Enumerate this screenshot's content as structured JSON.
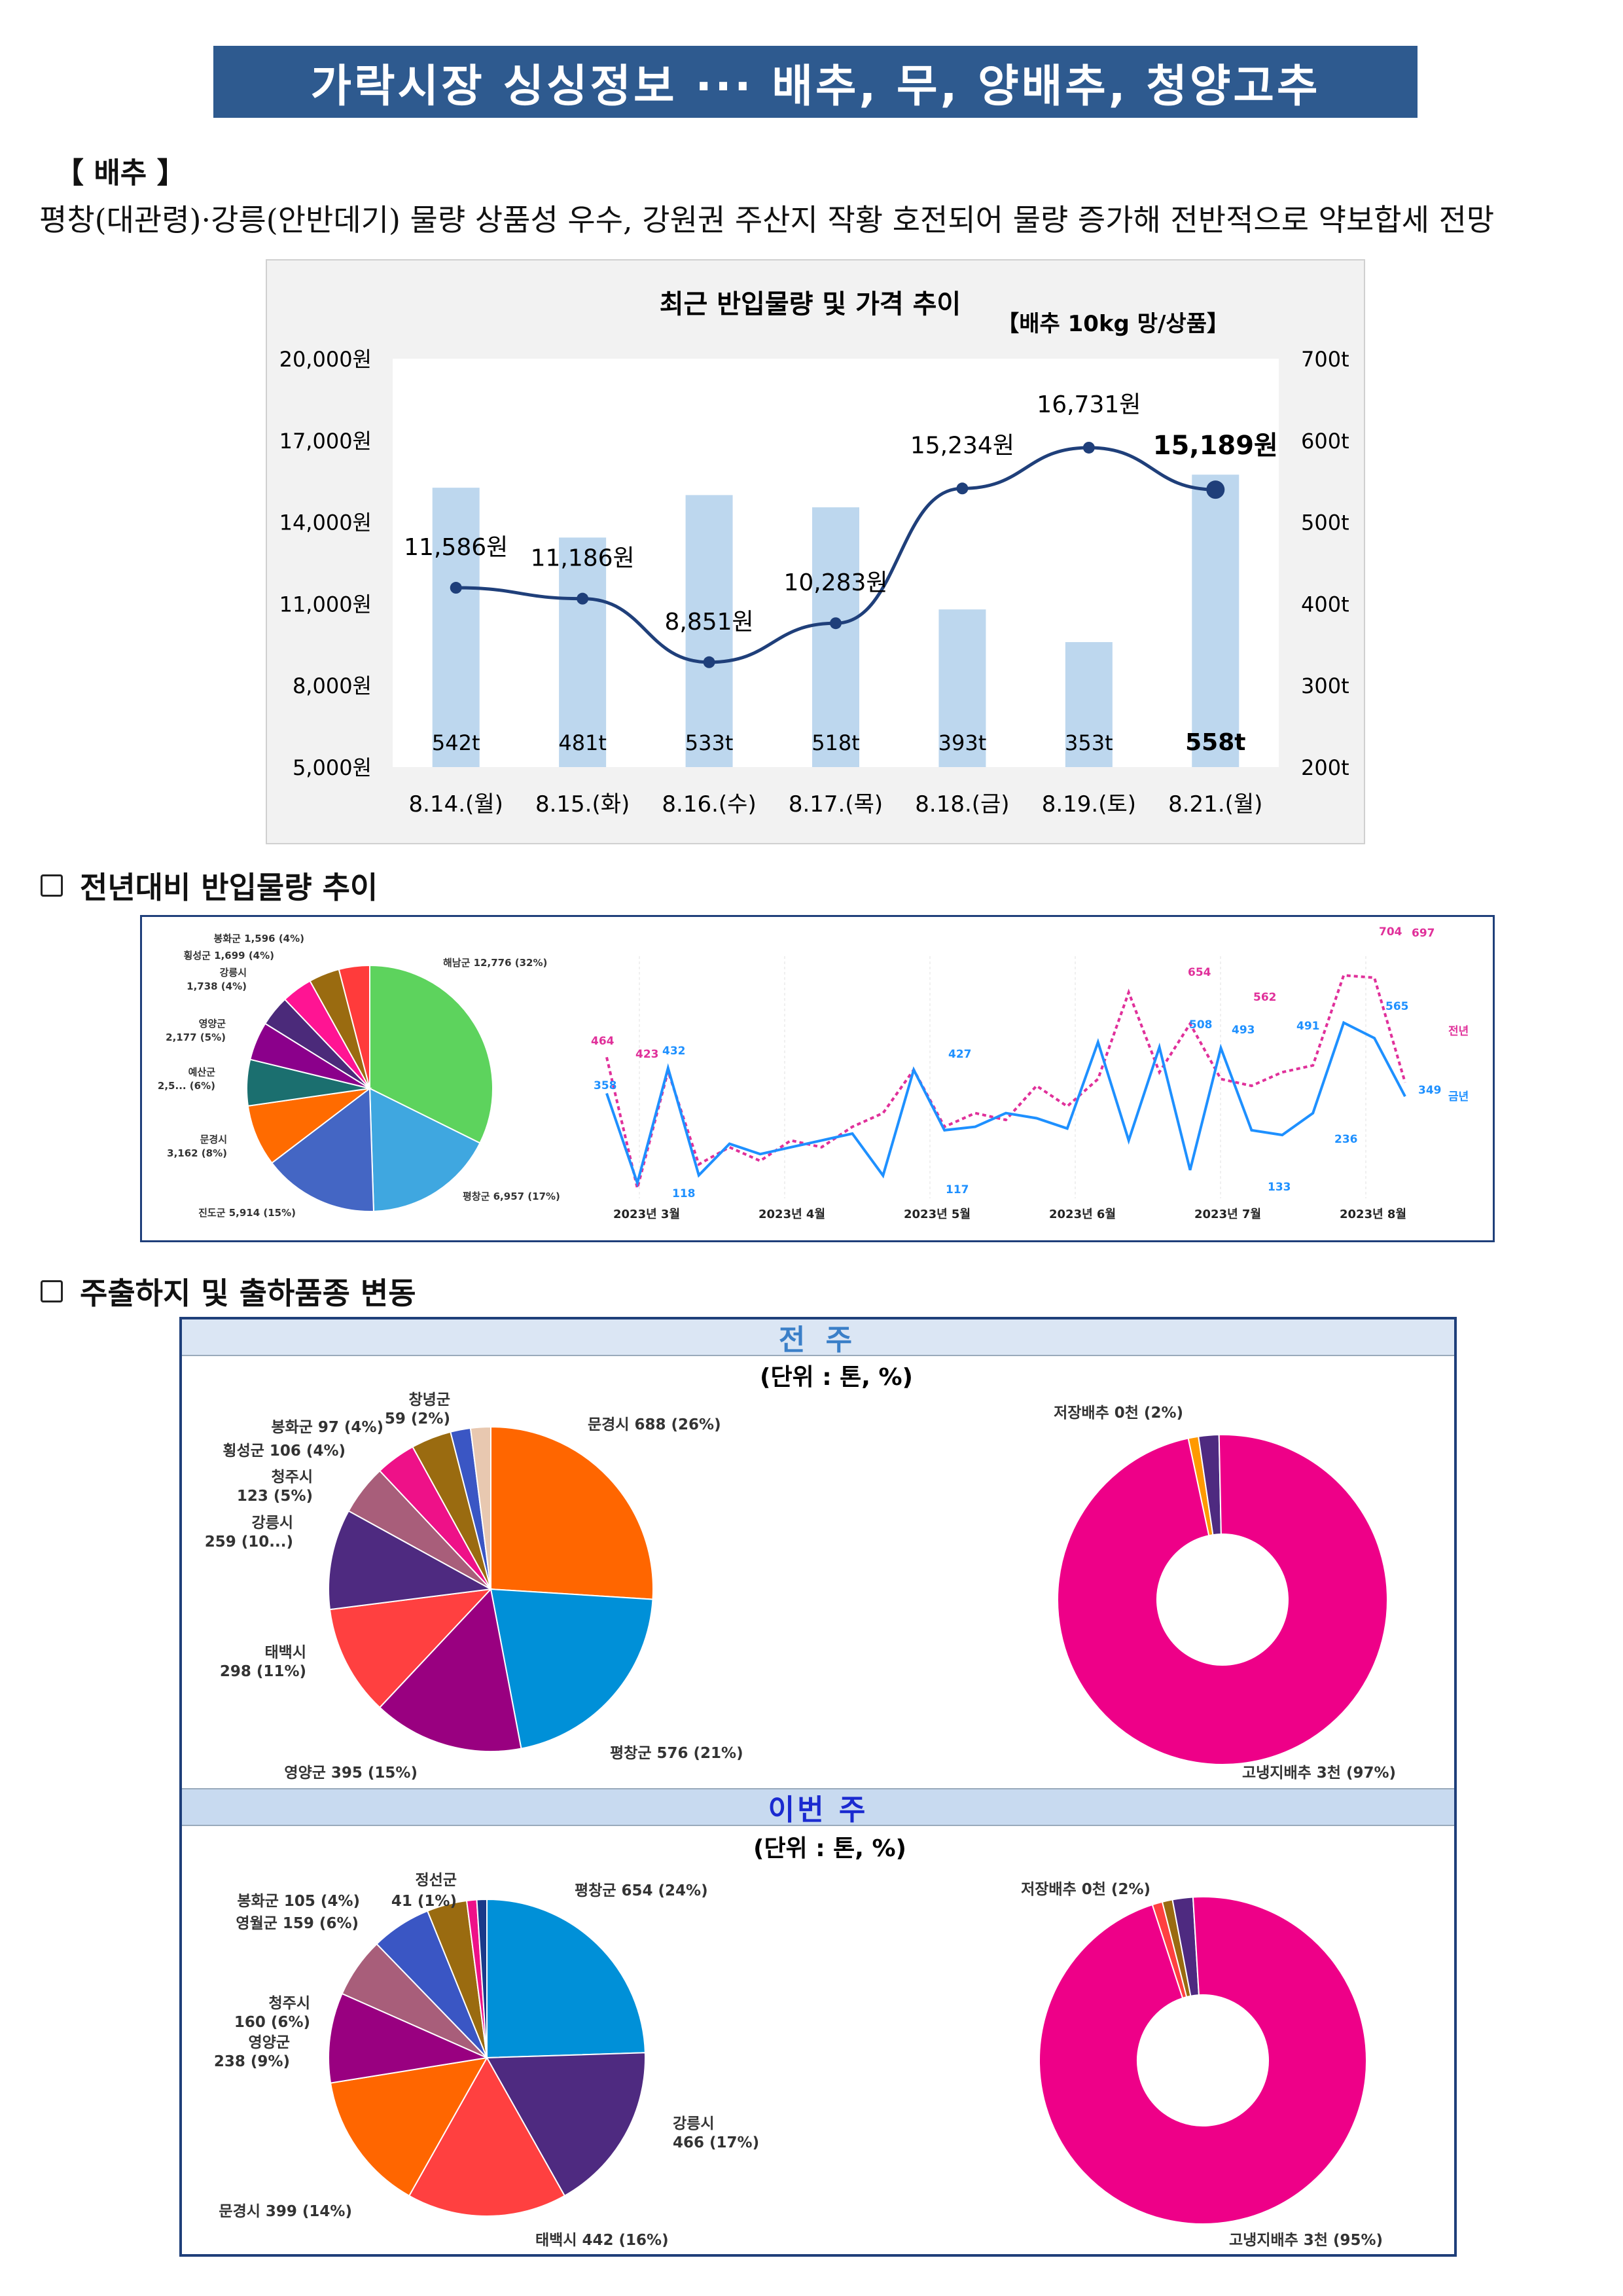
{
  "title": "가락시장 싱싱정보 ··· 배추, 무, 양배추, 청양고추",
  "section": "【 배추 】",
  "summary": "평창(대관령)·강릉(안반데기) 물량 상품성 우수, 강원권 주산지 작황 호전되어 물량 증가해 전반적으로 약보합세 전망",
  "chart_data": [
    {
      "type": "bar+line",
      "title": "최근 반입물량 및 가격 추이",
      "unit_note": "【배추 10kg 망/상품】",
      "categories": [
        "8.14.(월)",
        "8.15.(화)",
        "8.16.(수)",
        "8.17.(목)",
        "8.18.(금)",
        "8.19.(토)",
        "8.21.(월)"
      ],
      "series": [
        {
          "name": "반입물량",
          "axis": "right",
          "values": [
            542,
            481,
            533,
            518,
            393,
            353,
            558
          ],
          "labels": [
            "542t",
            "481t",
            "533t",
            "518t",
            "393t",
            "353t",
            "558t"
          ]
        },
        {
          "name": "가격",
          "axis": "left",
          "values": [
            11586,
            11186,
            8851,
            10283,
            15234,
            16731,
            15189
          ],
          "labels": [
            "11,586원",
            "11,186원",
            "8,851원",
            "10,283원",
            "15,234원",
            "16,731원",
            "15,189원"
          ]
        }
      ],
      "ylim_left": [
        5000,
        20000
      ],
      "ylim_right": [
        200,
        700
      ],
      "left_ticks": [
        "5,000원",
        "8,000원",
        "11,000원",
        "14,000원",
        "17,000원",
        "20,000원"
      ],
      "right_ticks": [
        "200t",
        "300t",
        "400t",
        "500t",
        "600t",
        "700t"
      ],
      "colors": {
        "bar": "#bdd7ee",
        "line": "#1f3f7a"
      }
    },
    {
      "type": "pie",
      "slices": [
        {
          "label": "해남군 12,776 (32%)",
          "value": 32,
          "color": "#5dd35d"
        },
        {
          "label": "평창군 6,957 (17%)",
          "value": 17,
          "color": "#3fa7e0"
        },
        {
          "label": "진도군 5,914 (15%)",
          "value": 15,
          "color": "#4466c4"
        },
        {
          "label": "문경시 3,162 (8%)",
          "value": 8,
          "color": "#ff6b00"
        },
        {
          "label": "예산군 2,5... (6%)",
          "value": 6,
          "color": "#1b6f6f"
        },
        {
          "label": "영양군 2,177 (5%)",
          "value": 5,
          "color": "#8b008b"
        },
        {
          "label": "강릉시 1,738 (4%)",
          "value": 4,
          "color": "#4b2a7a"
        },
        {
          "label": "횡성군 1,699 (4%)",
          "value": 4,
          "color": "#ff1493"
        },
        {
          "label": "봉화군 1,596 (4%)",
          "value": 4,
          "color": "#9a6b10"
        },
        {
          "label": "",
          "value": 4,
          "color": "#ff3b3b"
        }
      ]
    },
    {
      "type": "line",
      "series": [
        {
          "name": "전년",
          "color": "#e0309a",
          "values": [
            464,
            80,
            423,
            150,
            200,
            160,
            220,
            200,
            260,
            300,
            427,
            260,
            300,
            280,
            380,
            320,
            400,
            654,
            420,
            562,
            400,
            380,
            420,
            440,
            704,
            697,
            390
          ]
        },
        {
          "name": "금년",
          "color": "#1e90ff",
          "values": [
            358,
            95,
            432,
            118,
            210,
            180,
            200,
            220,
            240,
            117,
            427,
            250,
            260,
            300,
            285,
            255,
            508,
            220,
            493,
            133,
            491,
            250,
            236,
            300,
            565,
            520,
            349
          ]
        }
      ],
      "x_ticks": [
        "2023년 3월",
        "2023년 4월",
        "2023년 5월",
        "2023년 6월",
        "2023년 7월",
        "2023년 8월"
      ],
      "data_labels": [
        "464",
        "423",
        "432",
        "358",
        "118",
        "117",
        "427",
        "654",
        "508",
        "493",
        "562",
        "491",
        "133",
        "236",
        "565",
        "704",
        "697",
        "349",
        "전년",
        "금년"
      ]
    },
    {
      "type": "pie",
      "group": "전 주",
      "unit": "(단위 : 톤, %)",
      "slices": [
        {
          "label": "문경시 688 (26%)",
          "value": 26,
          "color": "#ff6600"
        },
        {
          "label": "평창군 576 (21%)",
          "value": 21,
          "color": "#0090d8"
        },
        {
          "label": "영양군 395 (15%)",
          "value": 15,
          "color": "#990080"
        },
        {
          "label": "태백시 298 (11%)",
          "value": 11,
          "color": "#ff4040"
        },
        {
          "label": "강릉시 259 (10...)",
          "value": 10,
          "color": "#4e2a80"
        },
        {
          "label": "청주시 123 (5%)",
          "value": 5,
          "color": "#a85e7a"
        },
        {
          "label": "횡성군 106 (4%)",
          "value": 4,
          "color": "#ee1188"
        },
        {
          "label": "봉화군 97 (4%)",
          "value": 4,
          "color": "#9a6b10"
        },
        {
          "label": "창녕군 59 (2%)",
          "value": 2,
          "color": "#3a56c4"
        },
        {
          "label": "",
          "value": 2,
          "color": "#e8c8b0"
        }
      ]
    },
    {
      "type": "donut",
      "group": "전 주",
      "slices": [
        {
          "label": "고냉지배추 3천 (97%)",
          "value": 97,
          "color": "#ee0088"
        },
        {
          "label": "저장배추 0천 (2%)",
          "value": 2,
          "color": "#4e2a80"
        },
        {
          "label": "",
          "value": 1,
          "color": "#ff9900"
        }
      ]
    },
    {
      "type": "pie",
      "group": "이번 주",
      "unit": "(단위 : 톤, %)",
      "slices": [
        {
          "label": "평창군 654 (24%)",
          "value": 24,
          "color": "#0090d8"
        },
        {
          "label": "강릉시 466 (17%)",
          "value": 17,
          "color": "#4e2a80"
        },
        {
          "label": "태백시 442 (16%)",
          "value": 16,
          "color": "#ff4040"
        },
        {
          "label": "문경시 399 (14%)",
          "value": 14,
          "color": "#ff6600"
        },
        {
          "label": "영양군 238 (9%)",
          "value": 9,
          "color": "#990080"
        },
        {
          "label": "청주시 160 (6%)",
          "value": 6,
          "color": "#a85e7a"
        },
        {
          "label": "영월군 159 (6%)",
          "value": 6,
          "color": "#3a56c4"
        },
        {
          "label": "봉화군 105 (4%)",
          "value": 4,
          "color": "#9a6b10"
        },
        {
          "label": "정선군 41 (1%)",
          "value": 1,
          "color": "#ee1188"
        },
        {
          "label": "",
          "value": 1,
          "color": "#1a3a8a"
        }
      ]
    },
    {
      "type": "donut",
      "group": "이번 주",
      "slices": [
        {
          "label": "고냉지배추 3천 (95%)",
          "value": 95,
          "color": "#ee0088"
        },
        {
          "label": "저장배추 0천 (2%)",
          "value": 2,
          "color": "#4e2a80"
        },
        {
          "label": "",
          "value": 1,
          "color": "#9a6b10"
        },
        {
          "label": "",
          "value": 1,
          "color": "#ff4040"
        }
      ]
    }
  ],
  "sections": {
    "trend": "전년대비 반입물량 추이",
    "origin": "주출하지 및 출하품종 변동",
    "prev_week": "전 주",
    "this_week": "이번 주"
  }
}
